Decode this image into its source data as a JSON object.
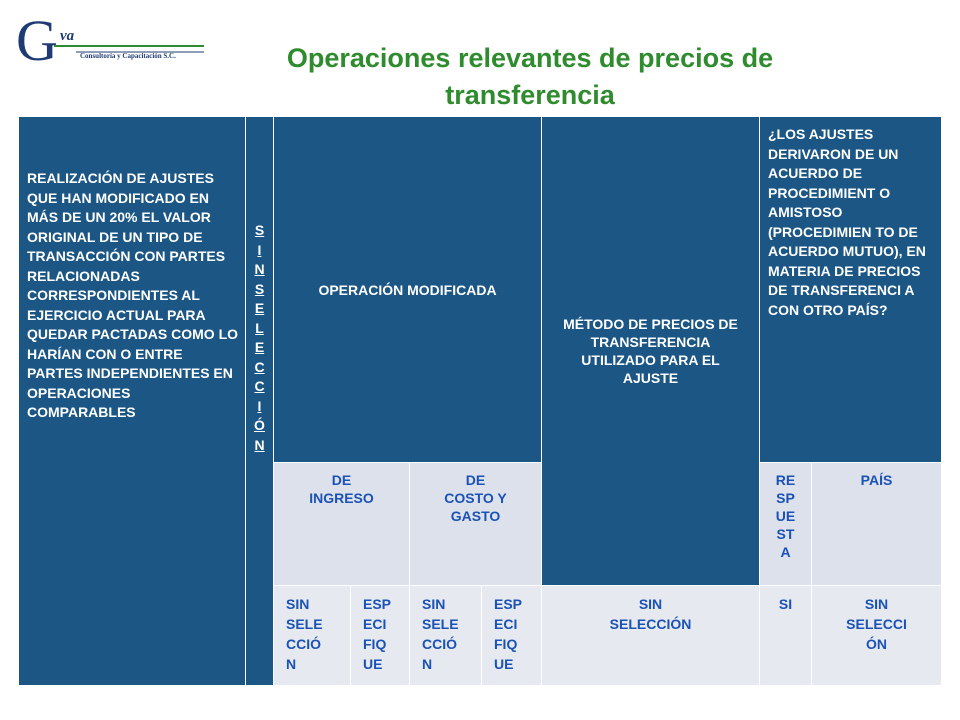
{
  "logo": {
    "letter": "G",
    "small": "va",
    "tagline": "Consultoría y Capacitación S.C."
  },
  "title": "Operaciones relevantes de precios de transferencia",
  "table": {
    "h_realizacion": "REALIZACIÓN DE AJUSTES QUE HAN MODIFICADO EN MÁS DE UN 20% EL VALOR ORIGINAL DE UN TIPO DE TRANSACCIÓN CON PARTES RELACIONADAS CORRESPONDIENTES AL EJERCICIO ACTUAL PARA QUEDAR PACTADAS COMO LO HARÍAN CON O ENTRE PARTES INDEPENDIENTES EN OPERACIONES COMPARABLES",
    "h_sin_seleccion": "S I N   S E L E C C I Ó N",
    "h_operacion": "OPERACIÓN MODIFICADA",
    "h_metodo": "MÉTODO DE PRECIOS DE TRANSFERENCIA UTILIZADO PARA EL AJUSTE",
    "h_ajustes": "¿LOS AJUSTES DERIVARON DE UN ACUERDO DE PROCEDIMIENT O AMISTOSO (PROCEDIMIEN TO DE ACUERDO MUTUO), EN MATERIA DE PRECIOS DE TRANSFERENCI A CON OTRO PAÍS?",
    "sub_de_ingreso": "DE INGRESO",
    "sub_de_costo": "DE COSTO Y GASTO",
    "sub_respuesta": "RE SP UE ST A",
    "sub_pais": "PAÍS",
    "r_sin_seleccion_1": "SIN SELE CCIÓ N",
    "r_especifique_1": "ESP ECI FIQ UE",
    "r_sin_seleccion_2": "SIN SELE CCIÓ N",
    "r_especifique_2": "ESP ECI FIQ UE",
    "r_metodo": "SIN SELECCIÓN",
    "r_si": "SI",
    "r_pais": "SIN SELECCI ÓN"
  }
}
